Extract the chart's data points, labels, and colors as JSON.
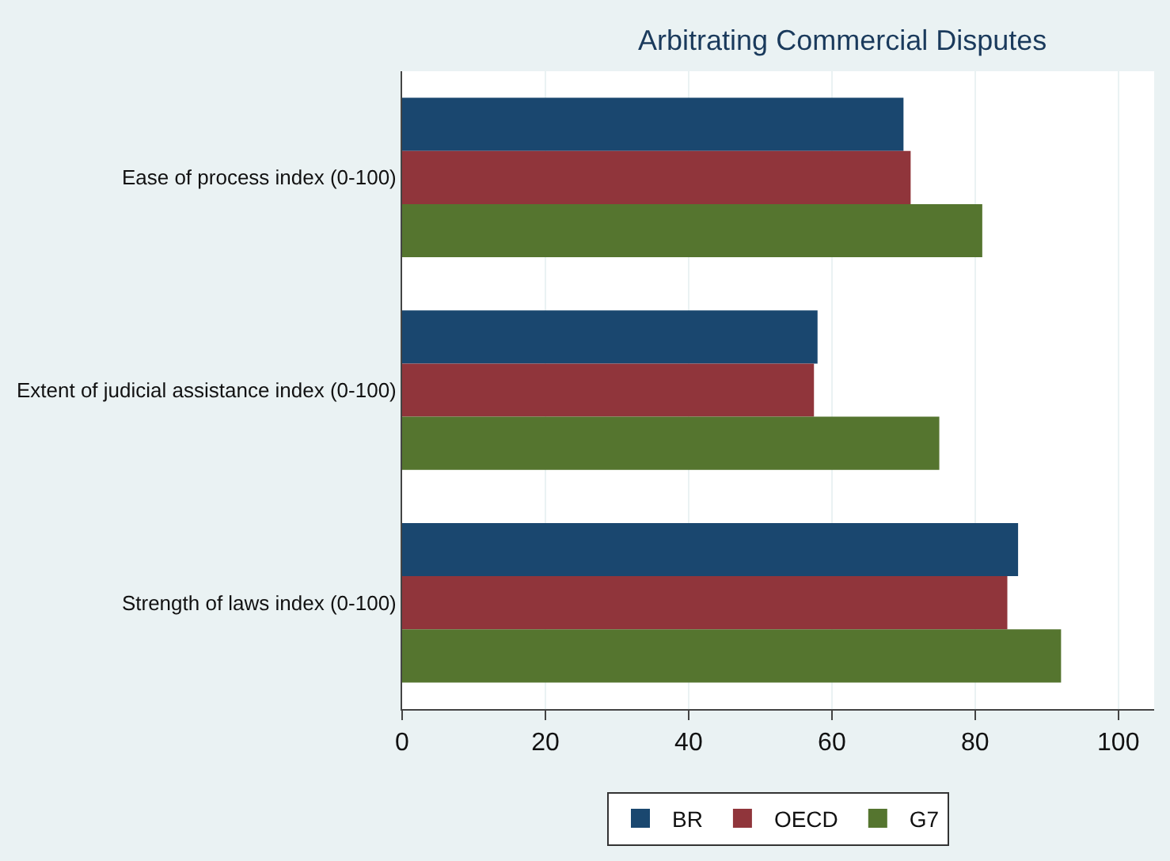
{
  "chart_data": {
    "type": "bar",
    "orientation": "horizontal",
    "title": "Arbitrating Commercial Disputes",
    "categories": [
      "Ease of process index (0-100)",
      "Extent of judicial assistance index (0-100)",
      "Strength of laws index (0-100)"
    ],
    "series": [
      {
        "name": "BR",
        "color": "#1a476f",
        "values": [
          70,
          58,
          86
        ]
      },
      {
        "name": "OECD",
        "color": "#90353b",
        "values": [
          71,
          57.5,
          84.5
        ]
      },
      {
        "name": "G7",
        "color": "#55752f",
        "values": [
          81,
          75,
          92
        ]
      }
    ],
    "xlim": [
      0,
      105
    ],
    "xticks": [
      0,
      20,
      40,
      60,
      80,
      100
    ],
    "grid": "x",
    "legend": "bottom"
  }
}
